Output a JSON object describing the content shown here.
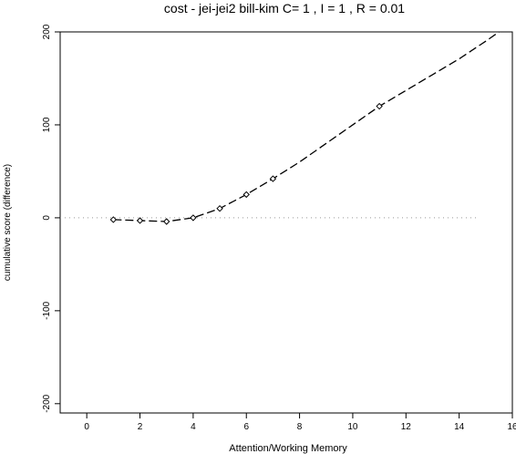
{
  "chart_data": {
    "type": "line",
    "title": "cost - jei-jei2 bill-kim C= 1 , I = 1 , R = 0.01",
    "xlabel": "Attention/Working Memory",
    "ylabel": "cumulative score (difference)",
    "xlim": [
      -1,
      16
    ],
    "ylim": [
      -210,
      200
    ],
    "xticks": [
      "0",
      "2",
      "4",
      "6",
      "8",
      "10",
      "12",
      "14",
      "16"
    ],
    "yticks": [
      "200",
      "100",
      "0",
      "-100",
      "-200"
    ],
    "reference_line_y": 0,
    "series": [
      {
        "style": "dashed-line",
        "x": [
          1,
          2,
          3,
          4,
          5,
          6,
          7,
          8,
          9,
          10,
          11,
          12,
          13,
          14,
          15,
          15.5
        ],
        "y": [
          -2,
          -3,
          -4,
          0,
          10,
          25,
          42,
          60,
          80,
          100,
          120,
          137,
          154,
          171,
          190,
          200
        ]
      },
      {
        "style": "points",
        "x": [
          1,
          2,
          3,
          4,
          5,
          6,
          7,
          11
        ],
        "y": [
          -2,
          -3,
          -4,
          0,
          10,
          25,
          42,
          120
        ]
      }
    ]
  }
}
